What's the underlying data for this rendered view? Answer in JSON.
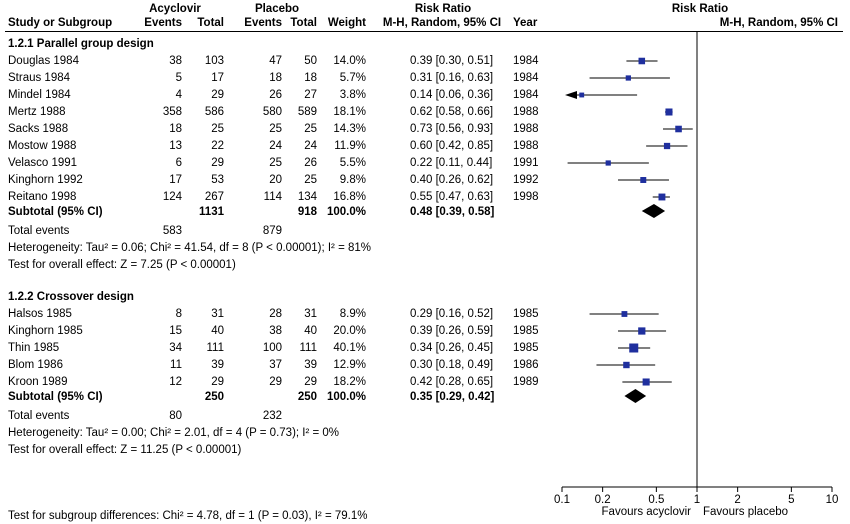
{
  "header": {
    "group1": "Acyclovir",
    "group2": "Placebo",
    "effect": "Risk Ratio",
    "study": "Study or Subgroup",
    "events": "Events",
    "total": "Total",
    "weight": "Weight",
    "method": "M-H, Random, 95% CI",
    "year": "Year",
    "plot_effect": "Risk Ratio",
    "plot_method": "M-H, Random, 95% CI"
  },
  "subgroups": [
    {
      "title": "1.2.1 Parallel group design",
      "studies": [
        {
          "name": "Douglas 1984",
          "e1": "38",
          "n1": "103",
          "e2": "47",
          "n2": "50",
          "weight": "14.0%",
          "ci": "0.39 [0.30, 0.51]",
          "year": "1984"
        },
        {
          "name": "Straus 1984",
          "e1": "5",
          "n1": "17",
          "e2": "18",
          "n2": "18",
          "weight": "5.7%",
          "ci": "0.31 [0.16, 0.63]",
          "year": "1984"
        },
        {
          "name": "Mindel 1984",
          "e1": "4",
          "n1": "29",
          "e2": "26",
          "n2": "27",
          "weight": "3.8%",
          "ci": "0.14 [0.06, 0.36]",
          "year": "1984"
        },
        {
          "name": "Mertz 1988",
          "e1": "358",
          "n1": "586",
          "e2": "580",
          "n2": "589",
          "weight": "18.1%",
          "ci": "0.62 [0.58, 0.66]",
          "year": "1988"
        },
        {
          "name": "Sacks 1988",
          "e1": "18",
          "n1": "25",
          "e2": "25",
          "n2": "25",
          "weight": "14.3%",
          "ci": "0.73 [0.56, 0.93]",
          "year": "1988"
        },
        {
          "name": "Mostow 1988",
          "e1": "13",
          "n1": "22",
          "e2": "24",
          "n2": "24",
          "weight": "11.9%",
          "ci": "0.60 [0.42, 0.85]",
          "year": "1988"
        },
        {
          "name": "Velasco 1991",
          "e1": "6",
          "n1": "29",
          "e2": "25",
          "n2": "26",
          "weight": "5.5%",
          "ci": "0.22 [0.11, 0.44]",
          "year": "1991"
        },
        {
          "name": "Kinghorn 1992",
          "e1": "17",
          "n1": "53",
          "e2": "20",
          "n2": "25",
          "weight": "9.8%",
          "ci": "0.40 [0.26, 0.62]",
          "year": "1992"
        },
        {
          "name": "Reitano 1998",
          "e1": "124",
          "n1": "267",
          "e2": "114",
          "n2": "134",
          "weight": "16.8%",
          "ci": "0.55 [0.47, 0.63]",
          "year": "1998"
        }
      ],
      "subtotal": {
        "label": "Subtotal (95% CI)",
        "n1": "1131",
        "n2": "918",
        "weight": "100.0%",
        "ci": "0.48 [0.39, 0.58]"
      },
      "total_events": {
        "label": "Total events",
        "e1": "583",
        "e2": "879"
      },
      "heterogeneity": "Heterogeneity: Tau² = 0.06; Chi² = 41.54, df = 8 (P < 0.00001); I² = 81%",
      "overall": "Test for overall effect: Z = 7.25 (P < 0.00001)"
    },
    {
      "title": "1.2.2 Crossover design",
      "studies": [
        {
          "name": "Halsos 1985",
          "e1": "8",
          "n1": "31",
          "e2": "28",
          "n2": "31",
          "weight": "8.9%",
          "ci": "0.29 [0.16, 0.52]",
          "year": "1985"
        },
        {
          "name": "Kinghorn 1985",
          "e1": "15",
          "n1": "40",
          "e2": "38",
          "n2": "40",
          "weight": "20.0%",
          "ci": "0.39 [0.26, 0.59]",
          "year": "1985"
        },
        {
          "name": "Thin 1985",
          "e1": "34",
          "n1": "111",
          "e2": "100",
          "n2": "111",
          "weight": "40.1%",
          "ci": "0.34 [0.26, 0.45]",
          "year": "1985"
        },
        {
          "name": "Blom 1986",
          "e1": "11",
          "n1": "39",
          "e2": "37",
          "n2": "39",
          "weight": "12.9%",
          "ci": "0.30 [0.18, 0.49]",
          "year": "1986"
        },
        {
          "name": "Kroon 1989",
          "e1": "12",
          "n1": "29",
          "e2": "29",
          "n2": "29",
          "weight": "18.2%",
          "ci": "0.42 [0.28, 0.65]",
          "year": "1989"
        }
      ],
      "subtotal": {
        "label": "Subtotal (95% CI)",
        "n1": "250",
        "n2": "250",
        "weight": "100.0%",
        "ci": "0.35 [0.29, 0.42]"
      },
      "total_events": {
        "label": "Total events",
        "e1": "80",
        "e2": "232"
      },
      "heterogeneity": "Heterogeneity: Tau² = 0.00; Chi² = 2.01, df = 4 (P = 0.73); I² = 0%",
      "overall": "Test for overall effect: Z = 11.25 (P < 0.00001)"
    }
  ],
  "axis": {
    "ticks": [
      "0.1",
      "0.2",
      "0.5",
      "1",
      "2",
      "5",
      "10"
    ],
    "favours_left": "Favours acyclovir",
    "favours_right": "Favours placebo"
  },
  "footer": {
    "subgroup_test": "Test for subgroup differences: Chi² = 4.78, df = 1 (P = 0.03), I² = 79.1%"
  },
  "colors": {
    "marker": "#1f2f9e",
    "line": "#000000"
  },
  "chart_data": {
    "type": "scatter",
    "scale": "log",
    "xlim": [
      0.1,
      10
    ],
    "reference_line": 1,
    "series": [
      {
        "name": "1.2.1 Parallel group design",
        "points": [
          {
            "study": "Douglas 1984",
            "rr": 0.39,
            "lo": 0.3,
            "hi": 0.51,
            "weight": 14.0
          },
          {
            "study": "Straus 1984",
            "rr": 0.31,
            "lo": 0.16,
            "hi": 0.63,
            "weight": 5.7
          },
          {
            "study": "Mindel 1984",
            "rr": 0.14,
            "lo": 0.06,
            "hi": 0.36,
            "weight": 3.8
          },
          {
            "study": "Mertz 1988",
            "rr": 0.62,
            "lo": 0.58,
            "hi": 0.66,
            "weight": 18.1
          },
          {
            "study": "Sacks 1988",
            "rr": 0.73,
            "lo": 0.56,
            "hi": 0.93,
            "weight": 14.3
          },
          {
            "study": "Mostow 1988",
            "rr": 0.6,
            "lo": 0.42,
            "hi": 0.85,
            "weight": 11.9
          },
          {
            "study": "Velasco 1991",
            "rr": 0.22,
            "lo": 0.11,
            "hi": 0.44,
            "weight": 5.5
          },
          {
            "study": "Kinghorn 1992",
            "rr": 0.4,
            "lo": 0.26,
            "hi": 0.62,
            "weight": 9.8
          },
          {
            "study": "Reitano 1998",
            "rr": 0.55,
            "lo": 0.47,
            "hi": 0.63,
            "weight": 16.8
          }
        ],
        "pooled": {
          "rr": 0.48,
          "lo": 0.39,
          "hi": 0.58
        }
      },
      {
        "name": "1.2.2 Crossover design",
        "points": [
          {
            "study": "Halsos 1985",
            "rr": 0.29,
            "lo": 0.16,
            "hi": 0.52,
            "weight": 8.9
          },
          {
            "study": "Kinghorn 1985",
            "rr": 0.39,
            "lo": 0.26,
            "hi": 0.59,
            "weight": 20.0
          },
          {
            "study": "Thin 1985",
            "rr": 0.34,
            "lo": 0.26,
            "hi": 0.45,
            "weight": 40.1
          },
          {
            "study": "Blom 1986",
            "rr": 0.3,
            "lo": 0.18,
            "hi": 0.49,
            "weight": 12.9
          },
          {
            "study": "Kroon 1989",
            "rr": 0.42,
            "lo": 0.28,
            "hi": 0.65,
            "weight": 18.2
          }
        ],
        "pooled": {
          "rr": 0.35,
          "lo": 0.29,
          "hi": 0.42
        }
      }
    ]
  }
}
